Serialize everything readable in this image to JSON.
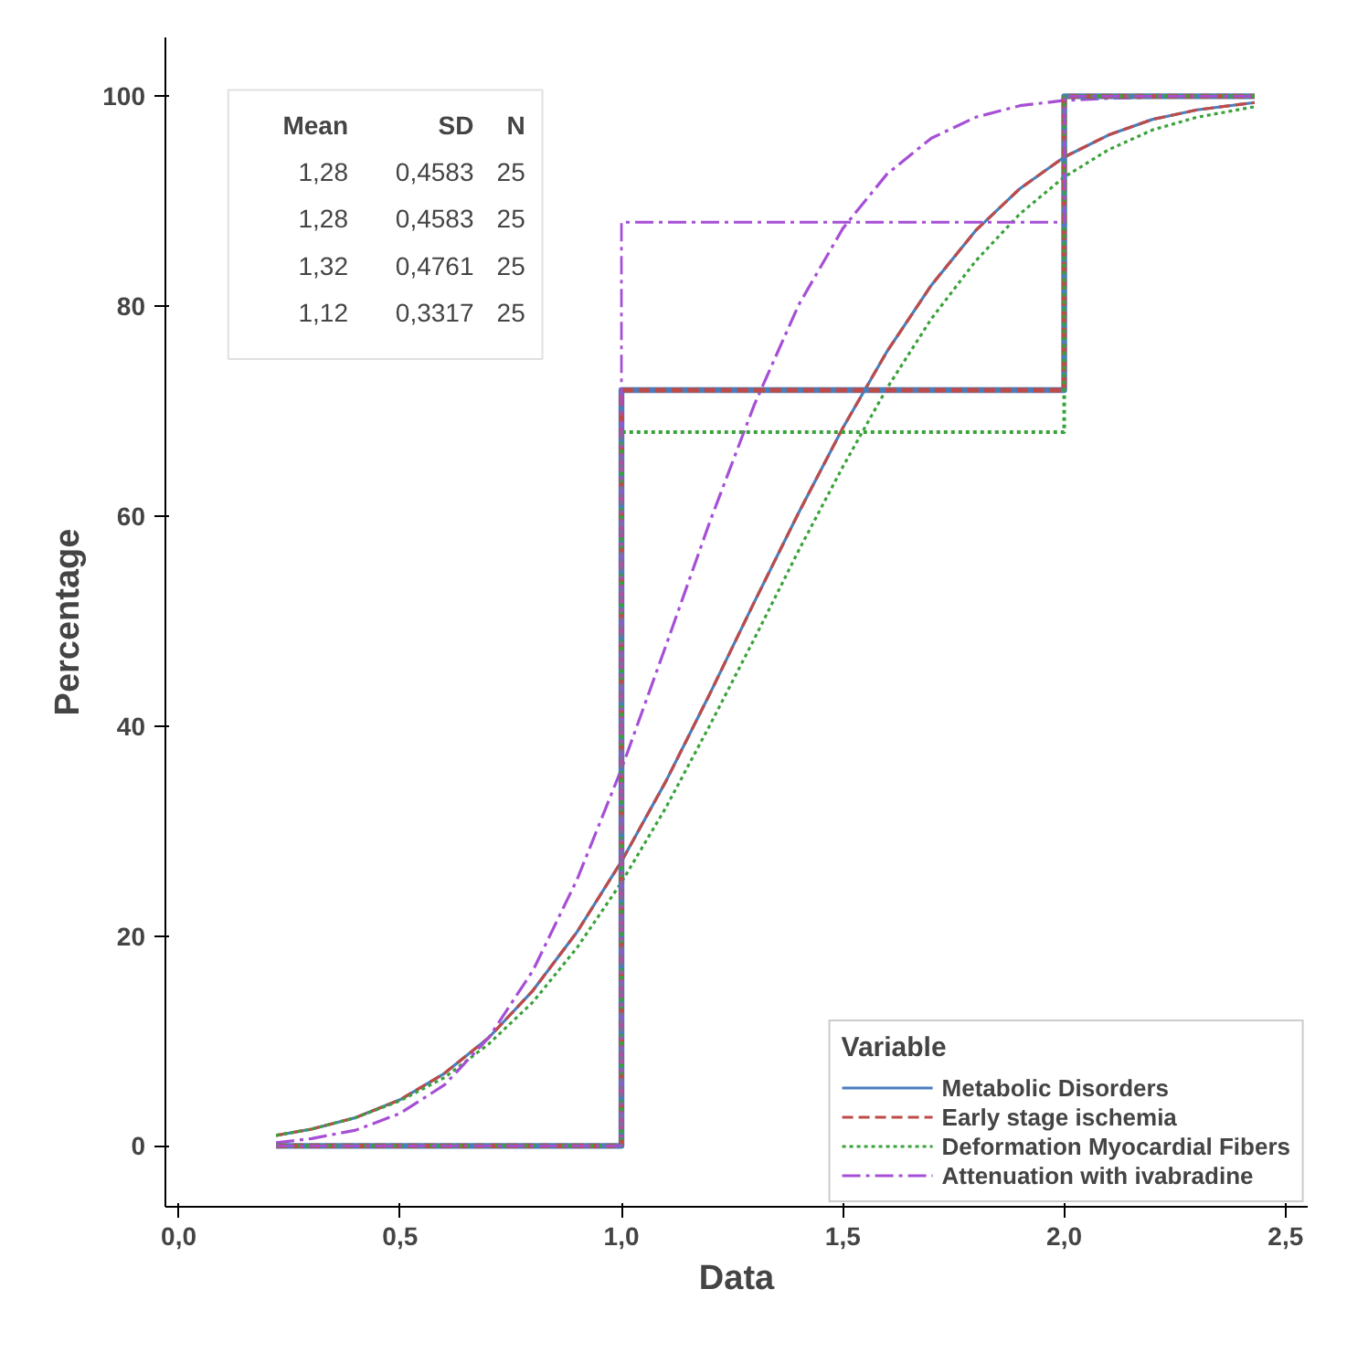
{
  "chart_data": {
    "type": "line",
    "xlabel": "Data",
    "ylabel": "Percentage",
    "legend_title": "Variable",
    "legend": "bottom right",
    "grid": false,
    "marker": "none",
    "xlim": [
      -0.03,
      2.55
    ],
    "ylim": [
      -5.8,
      105.6
    ],
    "xticks": [
      {
        "value": 0,
        "label": "0,0"
      },
      {
        "value": 0.5,
        "label": "0,5"
      },
      {
        "value": 1,
        "label": "1,0"
      },
      {
        "value": 1.5,
        "label": "1,5"
      },
      {
        "value": 2,
        "label": "2,0"
      },
      {
        "value": 2.5,
        "label": "2,5"
      }
    ],
    "yticks": [
      0,
      20,
      40,
      60,
      80,
      100
    ],
    "x": [
      0.22,
      0.3,
      0.4,
      0.5,
      0.6,
      0.7,
      0.8,
      0.9,
      1.0,
      1.1,
      1.2,
      1.3,
      1.4,
      1.5,
      1.6,
      1.7,
      1.8,
      1.9,
      2.0,
      2.1,
      2.2,
      2.3,
      2.43
    ],
    "annotations": [
      "Mean SD N",
      "1,28 0,4583 25",
      "1,28 0,4583 25",
      "1,32 0,4761 25",
      "1,12 0,3317 25"
    ],
    "series": [
      {
        "name": "Metabolic Disorders",
        "color": "#4a7ebb",
        "line_style": "solid",
        "values": [
          1.0,
          1.6,
          2.7,
          4.4,
          6.9,
          10.3,
          14.8,
          20.4,
          27.1,
          34.7,
          43.1,
          51.8,
          60.3,
          68.4,
          75.7,
          82.0,
          87.2,
          91.2,
          94.2,
          96.3,
          97.8,
          98.7,
          99.4
        ]
      },
      {
        "name": "Early stage ischemia",
        "color": "#be4b48",
        "line_style": "dashed",
        "values": [
          1.0,
          1.6,
          2.7,
          4.4,
          6.9,
          10.3,
          14.8,
          20.4,
          27.1,
          34.7,
          43.1,
          51.8,
          60.3,
          68.4,
          75.7,
          82.0,
          87.2,
          91.2,
          94.2,
          96.3,
          97.8,
          98.7,
          99.4
        ]
      },
      {
        "name": "Deformation Myocardial Fibers",
        "color": "#3aa23a",
        "line_style": "dotted",
        "values": [
          1.0,
          1.6,
          2.7,
          4.3,
          6.5,
          9.7,
          13.7,
          18.9,
          25.1,
          32.2,
          40.1,
          48.3,
          56.7,
          64.7,
          72.2,
          78.8,
          84.3,
          88.8,
          92.3,
          94.9,
          96.8,
          98.0,
          99.0
        ]
      },
      {
        "name": "Attenuation with ivabradine",
        "color": "#a64fd6",
        "line_style": "dashdot",
        "values": [
          0.3,
          0.7,
          1.5,
          3.1,
          5.8,
          10.3,
          16.7,
          25.4,
          35.9,
          47.6,
          59.5,
          70.6,
          80.1,
          87.4,
          92.6,
          96.0,
          98.0,
          99.1,
          99.6,
          99.8,
          99.9,
          100,
          100
        ]
      },
      {
        "type": "step",
        "color": "#4a7ebb",
        "line_style": "solid",
        "x": [
          0.22,
          1,
          2,
          2.43
        ],
        "values": [
          0,
          72,
          100,
          100
        ]
      },
      {
        "type": "step",
        "color": "#be4b48",
        "line_style": "dashed",
        "x": [
          0.22,
          1,
          2,
          2.43
        ],
        "values": [
          0,
          72,
          100,
          100
        ]
      },
      {
        "type": "step",
        "color": "#3aa23a",
        "line_style": "dotted",
        "x": [
          0.22,
          1,
          2,
          2.43
        ],
        "values": [
          0,
          68,
          100,
          100
        ]
      },
      {
        "type": "step",
        "color": "#a64fd6",
        "line_style": "dashdot",
        "x": [
          0.22,
          1,
          2,
          2.43
        ],
        "values": [
          0,
          88,
          100,
          100
        ]
      }
    ]
  }
}
